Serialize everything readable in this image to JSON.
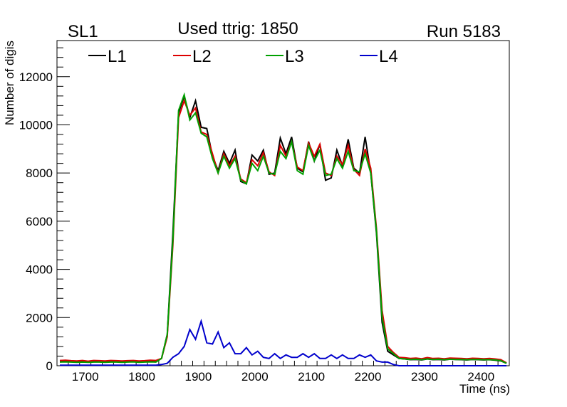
{
  "chart_data": {
    "type": "line",
    "title": "Used ttrig: 1850",
    "label_left": "SL1",
    "label_right": "Run 5183",
    "xlabel": "Time (ns)",
    "ylabel": "Number of digis",
    "xlim": [
      1650,
      2450
    ],
    "ylim": [
      0,
      13500
    ],
    "x_start": 1655,
    "bin_width": 10,
    "xticks": [
      "1700",
      "1800",
      "1900",
      "2000",
      "2100",
      "2200",
      "2300",
      "2400"
    ],
    "yticks": [
      "0",
      "2000",
      "4000",
      "6000",
      "8000",
      "10000",
      "12000"
    ],
    "grid": false,
    "legend_position": "top-left",
    "series": [
      {
        "name": "L1",
        "color": "#000000",
        "values": [
          200,
          210,
          190,
          180,
          200,
          170,
          200,
          190,
          180,
          200,
          190,
          180,
          190,
          200,
          180,
          190,
          210,
          200,
          300,
          1300,
          5500,
          10500,
          11200,
          10300,
          11000,
          9900,
          9850,
          8700,
          8100,
          8900,
          8400,
          8950,
          7650,
          7550,
          8750,
          8500,
          8950,
          7950,
          8000,
          9450,
          8800,
          9500,
          8200,
          8050,
          9300,
          8500,
          9200,
          7700,
          7800,
          8950,
          8300,
          9400,
          8200,
          8000,
          9500,
          8000,
          5500,
          1800,
          600,
          450,
          300,
          280,
          250,
          260,
          240,
          280,
          250,
          260,
          240,
          270,
          260,
          250,
          240,
          260,
          250,
          240,
          250,
          230,
          200,
          100
        ]
      },
      {
        "name": "L2",
        "color": "#dd0000",
        "values": [
          220,
          230,
          210,
          200,
          220,
          190,
          220,
          210,
          200,
          220,
          210,
          200,
          210,
          220,
          200,
          210,
          230,
          220,
          300,
          1200,
          5000,
          10300,
          11000,
          10400,
          10700,
          9700,
          9600,
          8800,
          8000,
          8800,
          8300,
          8700,
          7750,
          7600,
          8550,
          8300,
          8850,
          8050,
          7900,
          9150,
          8700,
          9300,
          8250,
          8100,
          9250,
          8700,
          9200,
          8000,
          7900,
          8700,
          8350,
          9150,
          8150,
          7900,
          9000,
          8200,
          5700,
          2300,
          800,
          550,
          350,
          330,
          300,
          320,
          290,
          340,
          300,
          310,
          290,
          320,
          310,
          300,
          290,
          310,
          300,
          290,
          300,
          280,
          250,
          120
        ]
      },
      {
        "name": "L3",
        "color": "#00a000",
        "values": [
          150,
          160,
          150,
          140,
          150,
          140,
          150,
          150,
          140,
          150,
          150,
          140,
          150,
          160,
          140,
          150,
          160,
          150,
          300,
          1300,
          5200,
          10600,
          11250,
          10200,
          10500,
          9650,
          9500,
          8600,
          8000,
          8700,
          8200,
          8600,
          7700,
          7550,
          8400,
          8100,
          8700,
          8000,
          7950,
          8900,
          8600,
          9300,
          8100,
          7950,
          9150,
          8500,
          8950,
          7900,
          7950,
          8600,
          8200,
          8900,
          8100,
          8050,
          8800,
          8000,
          5600,
          2000,
          700,
          500,
          300,
          280,
          260,
          270,
          250,
          280,
          260,
          270,
          250,
          270,
          260,
          260,
          250,
          260,
          260,
          250,
          250,
          240,
          210,
          100
        ]
      },
      {
        "name": "L4",
        "color": "#0000cc",
        "values": [
          20,
          20,
          20,
          20,
          20,
          20,
          20,
          20,
          20,
          20,
          20,
          20,
          20,
          20,
          20,
          20,
          20,
          20,
          50,
          100,
          350,
          500,
          800,
          1500,
          1100,
          1850,
          950,
          900,
          1400,
          750,
          950,
          500,
          500,
          750,
          450,
          600,
          350,
          300,
          500,
          300,
          450,
          350,
          350,
          500,
          350,
          500,
          300,
          300,
          450,
          300,
          450,
          300,
          300,
          450,
          350,
          450,
          200,
          150,
          150,
          50,
          0,
          0,
          0,
          0,
          0,
          0,
          0,
          0,
          0,
          0,
          0,
          0,
          0,
          0,
          0,
          0,
          0,
          0,
          0,
          0
        ]
      }
    ]
  }
}
